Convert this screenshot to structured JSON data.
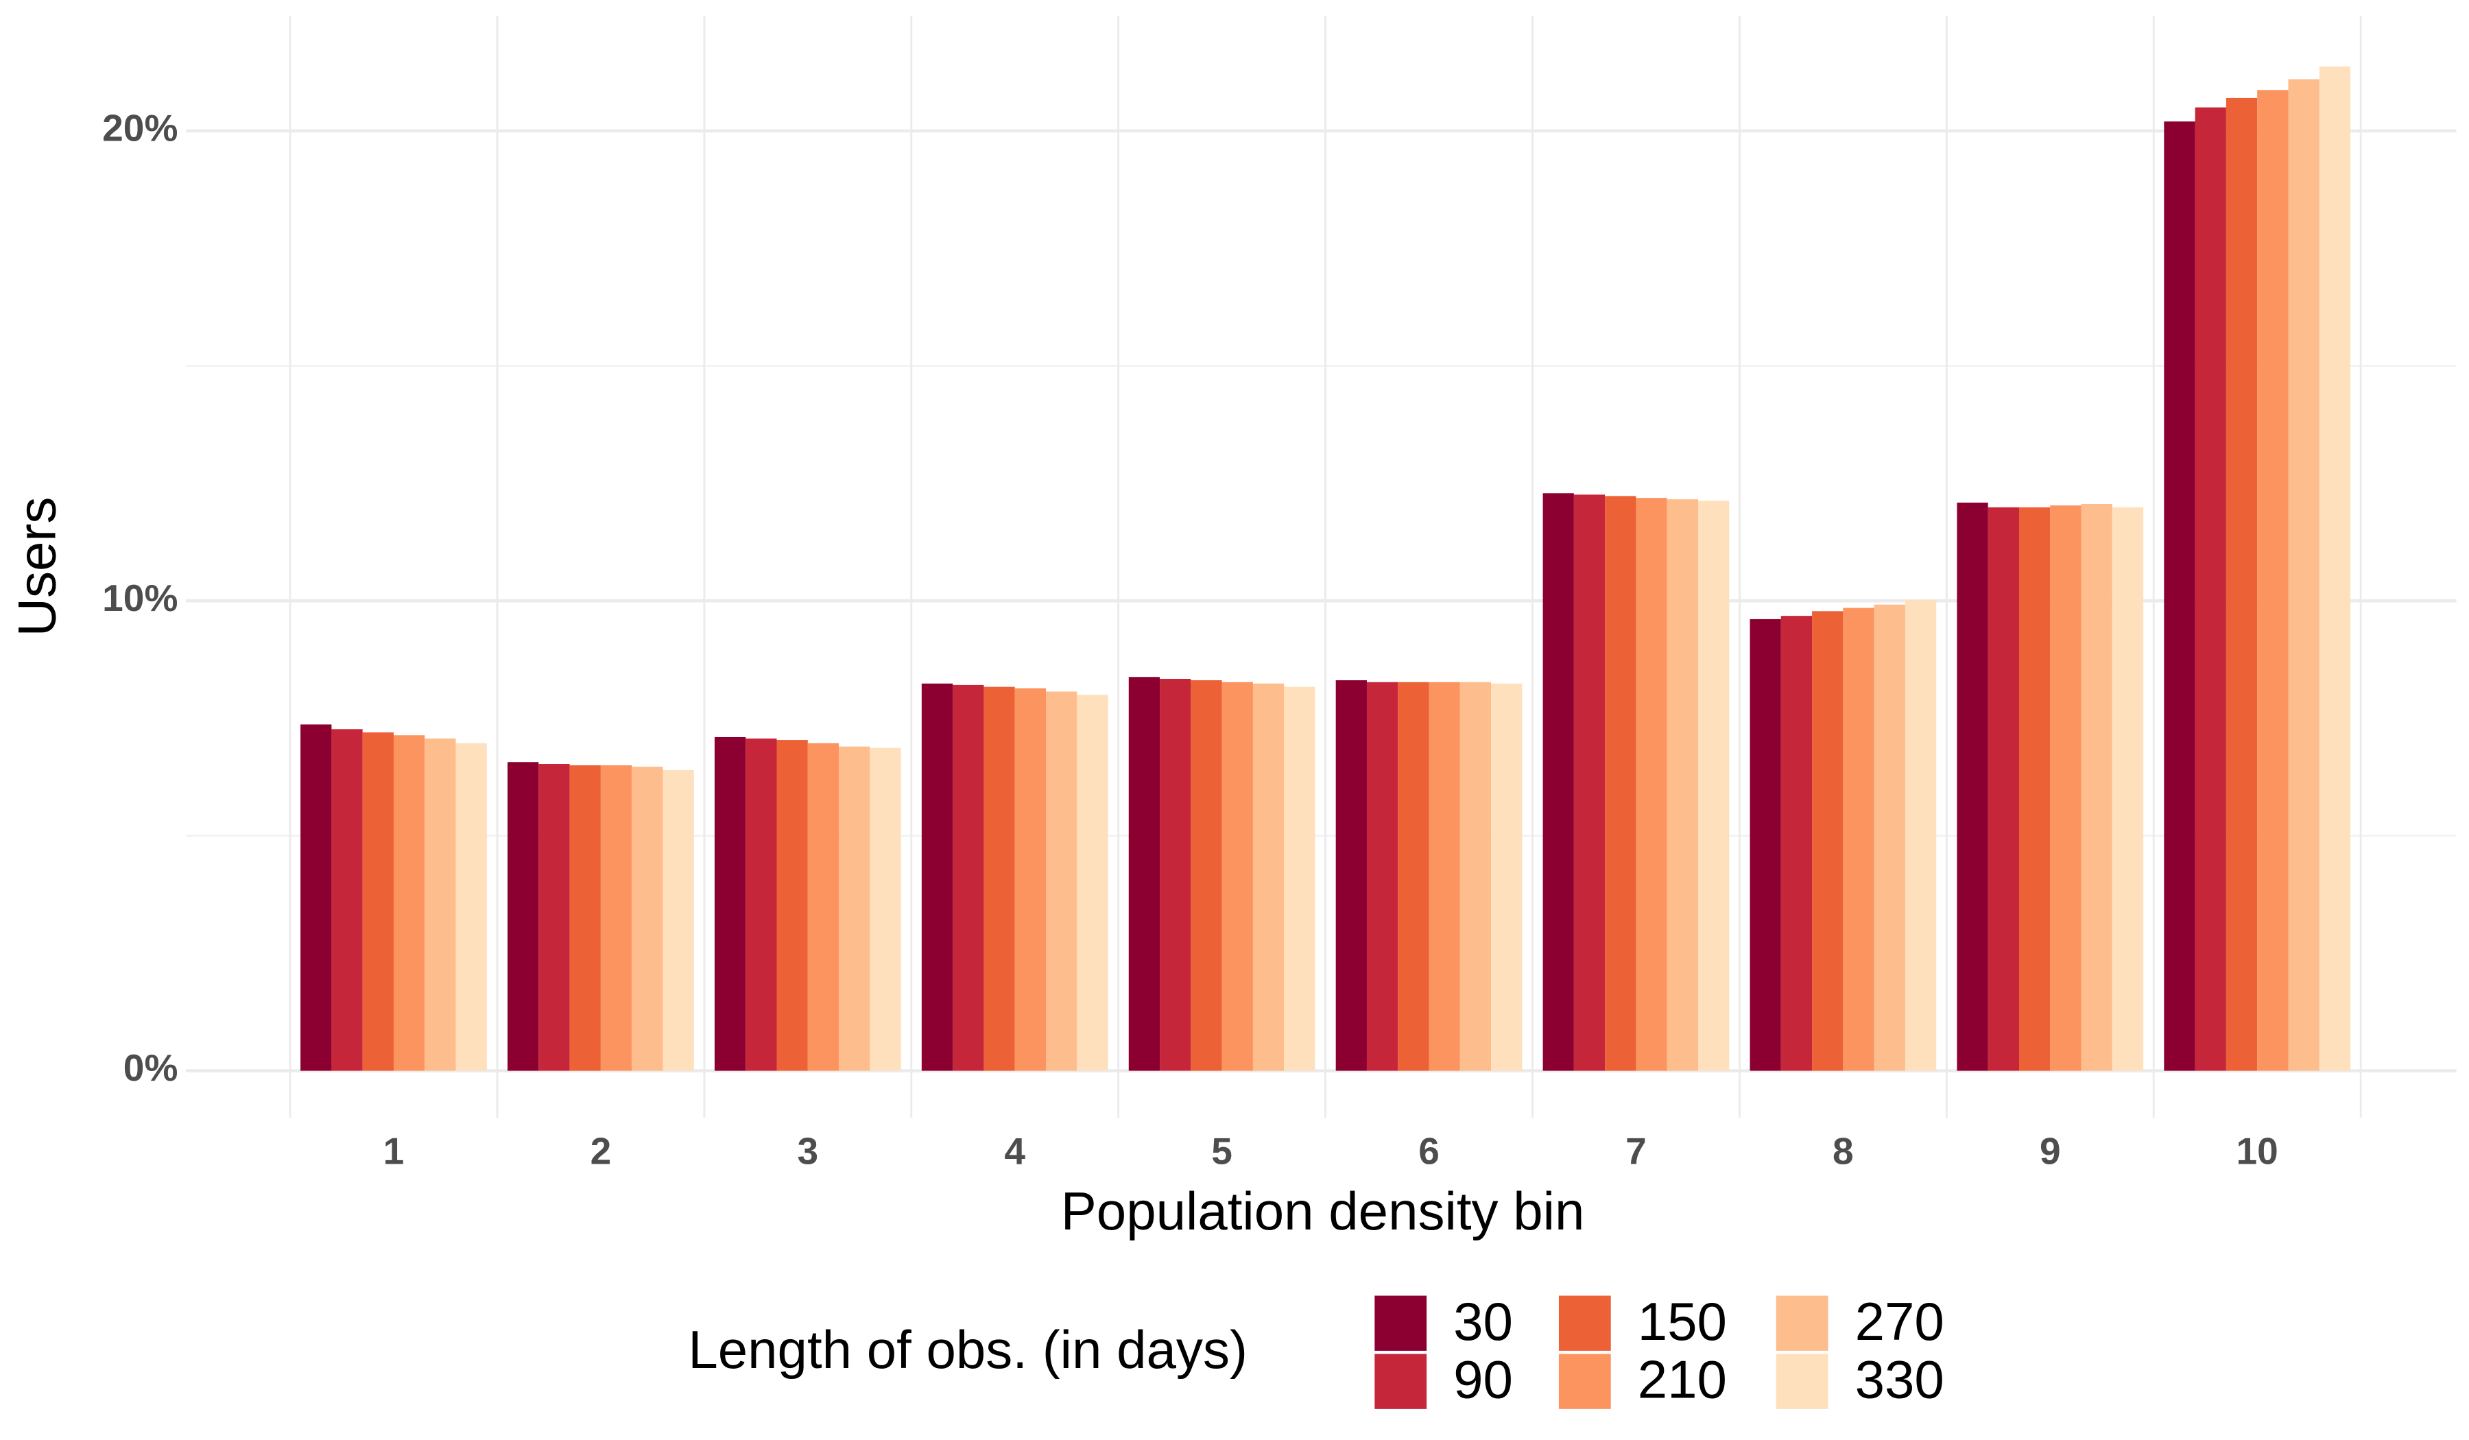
{
  "chart_data": {
    "type": "bar",
    "x_label": "Population density bin",
    "y_label": "Users",
    "legend_title": "Length of obs. (in days)",
    "categories": [
      "1",
      "2",
      "3",
      "4",
      "5",
      "6",
      "7",
      "8",
      "9",
      "10"
    ],
    "series": [
      {
        "name": "30",
        "color": "#8b0031",
        "values": [
          7.37,
          6.57,
          7.1,
          8.24,
          8.38,
          8.31,
          12.29,
          9.61,
          12.09,
          20.2
        ]
      },
      {
        "name": "90",
        "color": "#c5263a",
        "values": [
          7.27,
          6.53,
          7.07,
          8.21,
          8.34,
          8.27,
          12.26,
          9.68,
          11.99,
          20.5
        ]
      },
      {
        "name": "150",
        "color": "#ec6136",
        "values": [
          7.2,
          6.5,
          7.04,
          8.17,
          8.31,
          8.27,
          12.23,
          9.78,
          11.99,
          20.7
        ]
      },
      {
        "name": "210",
        "color": "#fc9460",
        "values": [
          7.14,
          6.5,
          6.97,
          8.14,
          8.27,
          8.27,
          12.19,
          9.85,
          12.03,
          20.87
        ]
      },
      {
        "name": "270",
        "color": "#fdbd8c",
        "values": [
          7.07,
          6.47,
          6.9,
          8.07,
          8.24,
          8.27,
          12.16,
          9.92,
          12.06,
          21.1
        ]
      },
      {
        "name": "330",
        "color": "#fee0bd",
        "values": [
          6.97,
          6.4,
          6.87,
          8.0,
          8.17,
          8.24,
          12.13,
          10.02,
          11.99,
          21.37
        ]
      }
    ],
    "ylim": [
      -1,
      22.45
    ],
    "yticks": [
      {
        "value": 0,
        "label": "0%"
      },
      {
        "value": 10,
        "label": "10%"
      },
      {
        "value": 20,
        "label": "20%"
      }
    ],
    "minor_yticks": [
      5,
      15
    ],
    "grid": true,
    "legend_position": "bottom"
  }
}
